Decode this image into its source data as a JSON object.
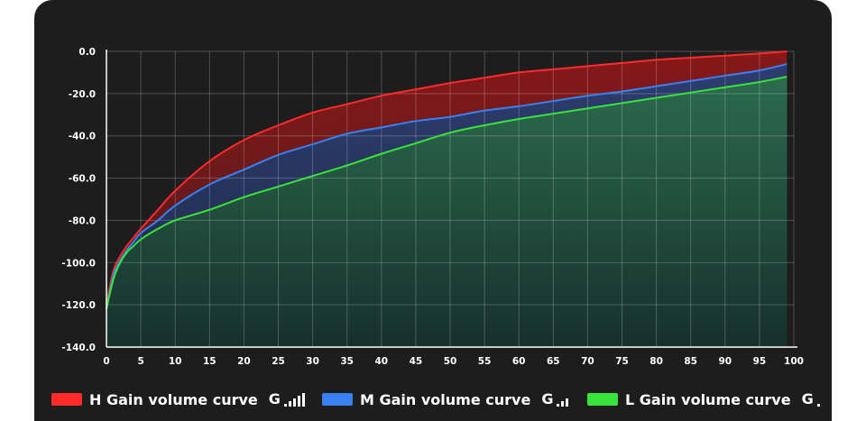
{
  "chart_data": {
    "type": "area",
    "x_ticks": [
      0,
      5,
      10,
      15,
      20,
      25,
      30,
      35,
      40,
      45,
      50,
      55,
      60,
      65,
      70,
      75,
      80,
      85,
      90,
      95,
      100
    ],
    "y_ticks": [
      "0.0",
      "-20.0",
      "-40.0",
      "-60.0",
      "-80.0",
      "-100.0",
      "-120.0",
      "-140.0"
    ],
    "xlim": [
      0,
      100
    ],
    "ylim": [
      -140,
      0
    ],
    "grid": true,
    "legend_position": "bottom",
    "series": [
      {
        "name": "H Gain volume curve",
        "color": "#ff2a2a",
        "signal_bars": 4,
        "points": [
          [
            0,
            -120
          ],
          [
            1,
            -104
          ],
          [
            2,
            -97
          ],
          [
            3,
            -92
          ],
          [
            4,
            -88
          ],
          [
            5,
            -84
          ],
          [
            7.5,
            -75
          ],
          [
            10,
            -66
          ],
          [
            15,
            -52
          ],
          [
            20,
            -42
          ],
          [
            25,
            -35
          ],
          [
            30,
            -29
          ],
          [
            35,
            -25
          ],
          [
            40,
            -21
          ],
          [
            45,
            -18
          ],
          [
            50,
            -15
          ],
          [
            55,
            -12.5
          ],
          [
            60,
            -10
          ],
          [
            65,
            -8.5
          ],
          [
            70,
            -7
          ],
          [
            75,
            -5.5
          ],
          [
            80,
            -4
          ],
          [
            85,
            -3
          ],
          [
            90,
            -2
          ],
          [
            95,
            -1
          ],
          [
            99,
            0
          ]
        ]
      },
      {
        "name": "M Gain volume curve",
        "color": "#3a80f0",
        "signal_bars": 2,
        "points": [
          [
            0,
            -122
          ],
          [
            1,
            -106
          ],
          [
            2,
            -99
          ],
          [
            3,
            -94
          ],
          [
            4,
            -90
          ],
          [
            5,
            -86
          ],
          [
            7.5,
            -80
          ],
          [
            10,
            -73
          ],
          [
            15,
            -63
          ],
          [
            20,
            -56
          ],
          [
            25,
            -49
          ],
          [
            30,
            -44
          ],
          [
            35,
            -39
          ],
          [
            40,
            -36
          ],
          [
            45,
            -33
          ],
          [
            50,
            -31
          ],
          [
            55,
            -28
          ],
          [
            60,
            -26
          ],
          [
            65,
            -23.5
          ],
          [
            70,
            -21
          ],
          [
            75,
            -19
          ],
          [
            80,
            -16.5
          ],
          [
            85,
            -14
          ],
          [
            90,
            -11.5
          ],
          [
            95,
            -9
          ],
          [
            99,
            -6
          ]
        ]
      },
      {
        "name": "L Gain volume curve",
        "color": "#39e43a",
        "signal_bars": 0,
        "points": [
          [
            0,
            -122
          ],
          [
            1,
            -108
          ],
          [
            2,
            -100
          ],
          [
            3,
            -95
          ],
          [
            4,
            -92
          ],
          [
            5,
            -89
          ],
          [
            7.5,
            -84
          ],
          [
            10,
            -80
          ],
          [
            15,
            -75
          ],
          [
            20,
            -69
          ],
          [
            25,
            -64
          ],
          [
            30,
            -59
          ],
          [
            35,
            -54
          ],
          [
            40,
            -48.5
          ],
          [
            45,
            -43.5
          ],
          [
            50,
            -38.5
          ],
          [
            55,
            -35
          ],
          [
            60,
            -32
          ],
          [
            65,
            -29.5
          ],
          [
            70,
            -27
          ],
          [
            75,
            -24.5
          ],
          [
            80,
            -22
          ],
          [
            85,
            -19.5
          ],
          [
            90,
            -17
          ],
          [
            95,
            -14.5
          ],
          [
            99,
            -12
          ]
        ]
      }
    ]
  }
}
